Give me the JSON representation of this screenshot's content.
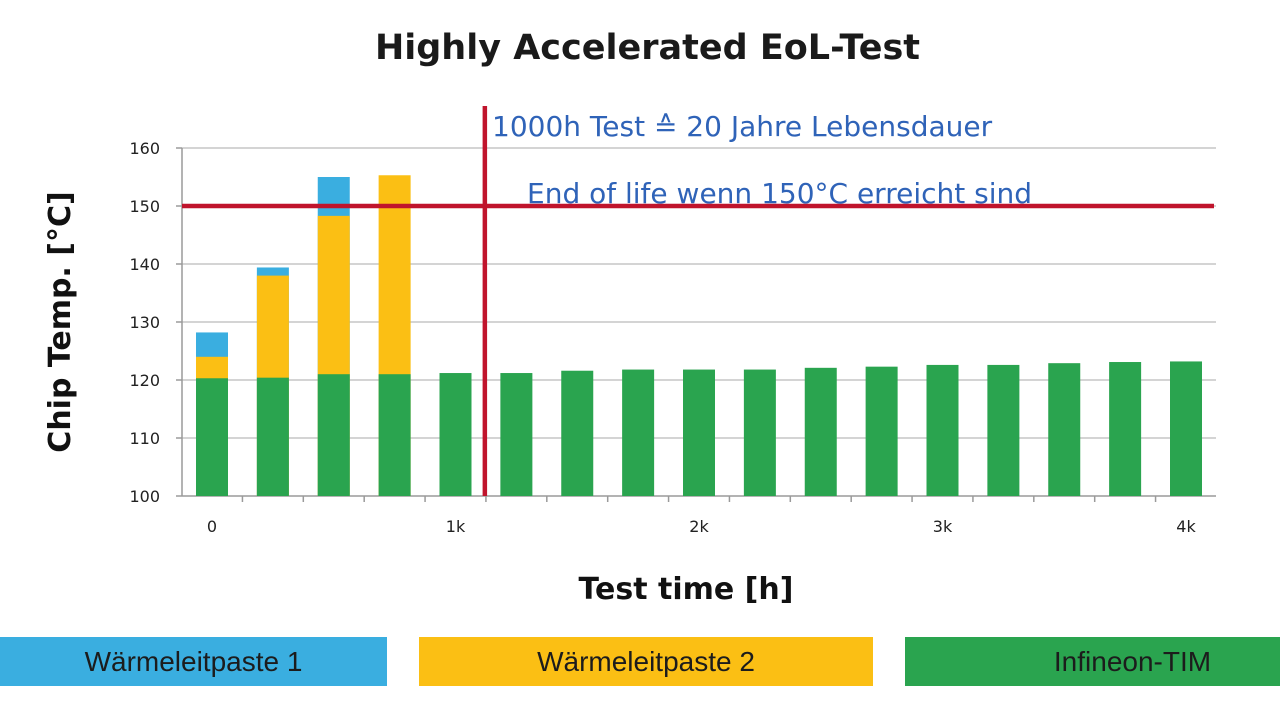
{
  "chart_data": {
    "type": "bar",
    "title": "Highly Accelerated EoL-Test",
    "xlabel": "Test time [h]",
    "ylabel": "Chip Temp. [°C]",
    "ylim": [
      100,
      160
    ],
    "yticks": [
      "100",
      "110",
      "120",
      "130",
      "140",
      "150",
      "160"
    ],
    "xticks": [
      {
        "label": "0",
        "value": 0
      },
      {
        "label": "1k",
        "value": 1000
      },
      {
        "label": "2k",
        "value": 2000
      },
      {
        "label": "3k",
        "value": 3000
      },
      {
        "label": "4k",
        "value": 4000
      }
    ],
    "grid": true,
    "x": [
      0,
      250,
      500,
      750,
      1000,
      1250,
      1500,
      1750,
      2000,
      2250,
      2500,
      2750,
      3000,
      3250,
      3500,
      3750,
      4000
    ],
    "series": [
      {
        "name": "Wärmeleitpaste 1",
        "color": "#3aaee0",
        "values": [
          128.2,
          139.4,
          155.0,
          null,
          null,
          null,
          null,
          null,
          null,
          null,
          null,
          null,
          null,
          null,
          null,
          null,
          null
        ]
      },
      {
        "name": "Wärmeleitpaste 2",
        "color": "#fbbf14",
        "values": [
          124.0,
          138.0,
          148.3,
          155.3,
          null,
          null,
          null,
          null,
          null,
          null,
          null,
          null,
          null,
          null,
          null,
          null,
          null
        ]
      },
      {
        "name": "Infineon-TIM",
        "color": "#2aa44f",
        "values": [
          120.3,
          120.4,
          121.0,
          121.0,
          121.2,
          121.2,
          121.6,
          121.8,
          121.8,
          121.8,
          122.1,
          122.3,
          122.6,
          122.6,
          122.9,
          123.1,
          123.2
        ]
      }
    ],
    "threshold_line": {
      "value": 150,
      "color": "#c0142c"
    },
    "marker_line": {
      "x": 1100,
      "color": "#c0142c"
    },
    "annotations": {
      "marker": "1000h Test ≙ 20 Jahre Lebensdauer",
      "threshold": "End of life wenn 150°C erreicht sind"
    },
    "legend_placement": "bottom"
  },
  "legend": [
    {
      "label": "Wärmeleitpaste 1",
      "color": "#3aaee0"
    },
    {
      "label": "Wärmeleitpaste 2",
      "color": "#fbbf14"
    },
    {
      "label": "Infineon-TIM",
      "color": "#2aa44f"
    }
  ]
}
